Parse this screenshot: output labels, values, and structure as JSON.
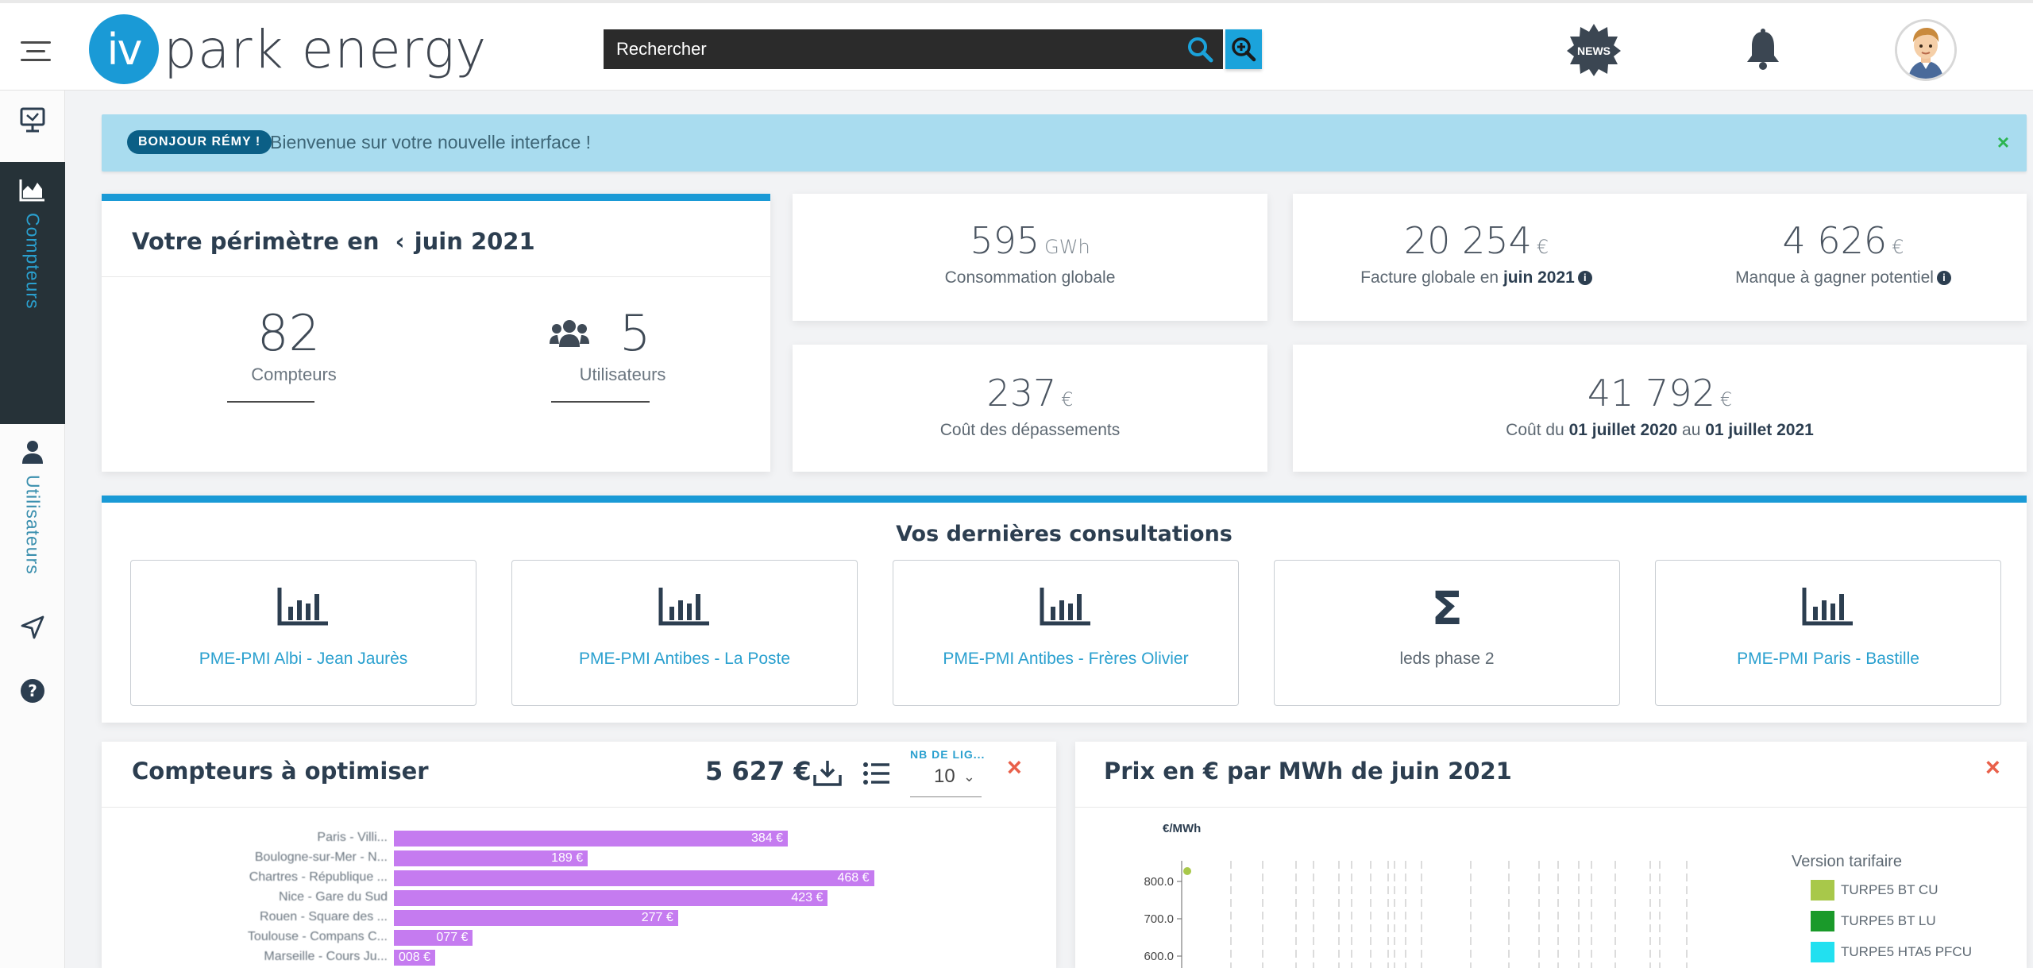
{
  "header": {
    "logo_mark": "iv",
    "logo_text": "park energy",
    "search_placeholder": "Rechercher",
    "news_label": "NEWS"
  },
  "sidebar": {
    "items": [
      {
        "label": "",
        "icon": "dashboard-icon"
      },
      {
        "label": "Compteurs",
        "icon": "area-chart-icon"
      },
      {
        "label": "Utilisateurs",
        "icon": "user-icon"
      },
      {
        "label": "",
        "icon": "send-icon"
      },
      {
        "label": "",
        "icon": "help-icon"
      }
    ]
  },
  "banner": {
    "pill": "BONJOUR RÉMY !",
    "text": "Bienvenue sur votre nouvelle interface !",
    "close": "×"
  },
  "perimeter": {
    "title": "Votre périmètre en",
    "month": "juin 2021",
    "compteurs_value": "82",
    "compteurs_label": "Compteurs",
    "utilisateurs_value": "5",
    "utilisateurs_label": "Utilisateurs"
  },
  "kpis": {
    "consommation": {
      "value": "595",
      "unit": "GWh",
      "label": "Consommation globale"
    },
    "facture": {
      "value": "20 254",
      "unit": "€",
      "label_prefix": "Facture globale en",
      "label_bold": "juin 2021"
    },
    "manque": {
      "value": "4 626",
      "unit": "€",
      "label": "Manque à gagner potentiel"
    },
    "depassements": {
      "value": "237",
      "unit": "€",
      "label": "Coût des dépassements"
    },
    "cout_periode": {
      "value": "41 792",
      "unit": "€",
      "label_prefix": "Coût du",
      "date_from": "01 juillet 2020",
      "label_mid": "au",
      "date_to": "01 juillet 2021"
    }
  },
  "consultations": {
    "title": "Vos dernières consultations",
    "tiles": [
      {
        "label": "PME-PMI Albi - Jean Jaurès",
        "icon": "bar-chart-icon"
      },
      {
        "label": "PME-PMI Antibes - La Poste",
        "icon": "bar-chart-icon"
      },
      {
        "label": "PME-PMI Antibes - Frères Olivier",
        "icon": "bar-chart-icon"
      },
      {
        "label": "leds phase 2",
        "icon": "sigma-icon"
      },
      {
        "label": "PME-PMI Paris - Bastille",
        "icon": "bar-chart-icon"
      }
    ]
  },
  "optimiser": {
    "title": "Compteurs à optimiser",
    "total": "5 627 €",
    "nb_label": "NB DE LIG...",
    "nb_value": "10",
    "close": "×",
    "bar_color": "#c57bf0",
    "bars": [
      {
        "label": "Paris - Villi...",
        "value": 384,
        "text": "384 €"
      },
      {
        "label": "Boulogne-sur-Mer - N...",
        "value": 189,
        "text": "189 €"
      },
      {
        "label": "Chartres - République ...",
        "value": 468,
        "text": "468 €"
      },
      {
        "label": "Nice - Gare du Sud",
        "value": 423,
        "text": "423 €"
      },
      {
        "label": "Rouen - Square des ...",
        "value": 277,
        "text": "277 €"
      },
      {
        "label": "Toulouse - Compans C...",
        "value": 77,
        "text": "077 €"
      },
      {
        "label": "Marseille - Cours Ju...",
        "value": 8,
        "text": "008 €"
      }
    ]
  },
  "prix": {
    "title": "Prix en € par MWh de juin 2021",
    "close": "×",
    "y_unit": "€/MWh",
    "y_ticks": [
      "800.0",
      "700.0",
      "600.0"
    ],
    "legend_title": "Version tarifaire",
    "legend": [
      {
        "label": "TURPE5 BT CU",
        "color": "#a8c84a"
      },
      {
        "label": "TURPE5 BT LU",
        "color": "#1a9a2a"
      },
      {
        "label": "TURPE5 HTA5 PFCU",
        "color": "#22e0f0"
      }
    ]
  },
  "colors": {
    "accent": "#1a9ad6",
    "sidebar_active": "#263238",
    "banner": "#a9dcef",
    "close_red": "#e9604a",
    "close_green": "#2bb550"
  }
}
